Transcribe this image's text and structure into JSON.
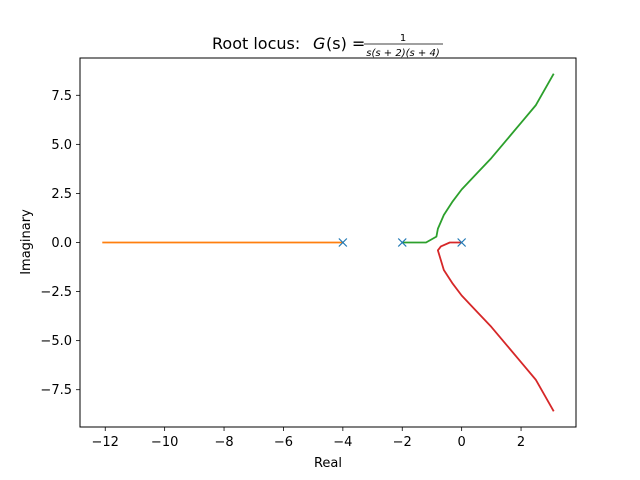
{
  "chart_data": {
    "type": "line",
    "title": {
      "prefix": "Root locus: ",
      "fn": "G",
      "fn_arg": "(s) = ",
      "numerator": "1",
      "denominator": "s(s + 2)(s + 4)"
    },
    "xlabel": "Real",
    "ylabel": "Imaginary",
    "xlim": [
      -12.85,
      3.85
    ],
    "ylim": [
      -9.4,
      9.4
    ],
    "xticks": [
      -12,
      -10,
      -8,
      -6,
      -4,
      -2,
      0,
      2
    ],
    "xtick_labels": [
      "−12",
      "−10",
      "−8",
      "−6",
      "−4",
      "−2",
      "0",
      "2"
    ],
    "yticks": [
      7.5,
      5.0,
      2.5,
      0.0,
      -2.5,
      -5.0,
      -7.5
    ],
    "ytick_labels": [
      "7.5",
      "5.0",
      "2.5",
      "0.0",
      "−2.5",
      "−5.0",
      "−7.5"
    ],
    "grid": false,
    "poles": [
      [
        0,
        0
      ],
      [
        -2,
        0
      ],
      [
        -4,
        0
      ]
    ],
    "pole_color": "#1f77b4",
    "series": [
      {
        "color": "#ff7f0e",
        "points": [
          [
            -4.0,
            0
          ],
          [
            -5.0,
            0
          ],
          [
            -6.0,
            0
          ],
          [
            -7.0,
            0
          ],
          [
            -8.0,
            0
          ],
          [
            -9.0,
            0
          ],
          [
            -10.0,
            0
          ],
          [
            -11.0,
            0
          ],
          [
            -12.1,
            0
          ]
        ]
      },
      {
        "color": "#2ca02c",
        "points": [
          [
            -2.0,
            0
          ],
          [
            -1.6,
            0
          ],
          [
            -1.2,
            0
          ],
          [
            -0.85,
            0.3
          ],
          [
            -0.8,
            0.7
          ],
          [
            -0.6,
            1.4
          ],
          [
            -0.3,
            2.1
          ],
          [
            0.0,
            2.7
          ],
          [
            0.5,
            3.5
          ],
          [
            1.0,
            4.3
          ],
          [
            1.5,
            5.2
          ],
          [
            2.0,
            6.1
          ],
          [
            2.5,
            7.0
          ],
          [
            3.1,
            8.6
          ]
        ]
      },
      {
        "color": "#d62728",
        "points": [
          [
            0.0,
            0
          ],
          [
            -0.4,
            0
          ],
          [
            -0.7,
            -0.2
          ],
          [
            -0.8,
            -0.4
          ],
          [
            -0.6,
            -1.4
          ],
          [
            -0.3,
            -2.1
          ],
          [
            0.0,
            -2.7
          ],
          [
            0.5,
            -3.5
          ],
          [
            1.0,
            -4.3
          ],
          [
            1.5,
            -5.2
          ],
          [
            2.0,
            -6.1
          ],
          [
            2.5,
            -7.0
          ],
          [
            3.1,
            -8.6
          ]
        ]
      }
    ]
  }
}
